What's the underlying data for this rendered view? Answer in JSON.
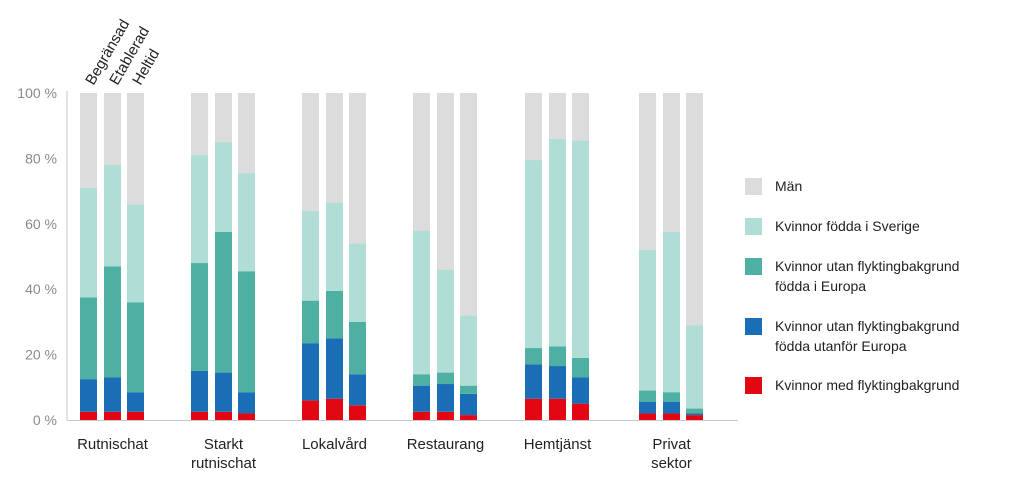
{
  "chart_data": {
    "type": "bar",
    "stacked": true,
    "ylim": [
      0,
      100
    ],
    "y_ticks": [
      "0 %",
      "20 %",
      "40 %",
      "60 %",
      "80 %",
      "100 %"
    ],
    "subgroups": [
      "Begränsad",
      "Etablerad",
      "Heltid"
    ],
    "categories": [
      {
        "lines": [
          "Rutnischat"
        ]
      },
      {
        "lines": [
          "Starkt",
          "rutnischat"
        ]
      },
      {
        "lines": [
          "Lokalvård"
        ]
      },
      {
        "lines": [
          "Restaurang"
        ]
      },
      {
        "lines": [
          "Hemtjänst"
        ]
      },
      {
        "lines": [
          "Privat",
          "sektor"
        ]
      }
    ],
    "series": [
      {
        "name": "Kvinnor med flyktingbakgrund",
        "color": "#e30613",
        "values": [
          [
            2.5,
            2.5,
            2.5
          ],
          [
            2.5,
            2.5,
            2
          ],
          [
            6,
            6.5,
            4.5
          ],
          [
            2.5,
            2.5,
            1.5
          ],
          [
            6.5,
            6.5,
            5
          ],
          [
            2,
            2,
            1.5
          ]
        ]
      },
      {
        "name": "Kvinnor utan flyktingbakgrund födda utanför Europa",
        "color": "#1a6eb5",
        "values": [
          [
            10,
            10.5,
            6
          ],
          [
            12.5,
            12,
            6.5
          ],
          [
            17.5,
            18.5,
            9.5
          ],
          [
            8,
            8.5,
            6.5
          ],
          [
            10.5,
            10,
            8
          ],
          [
            3.5,
            3.5,
            0.5
          ]
        ]
      },
      {
        "name": "Kvinnor utan flyktingbakgrund födda i Europa",
        "color": "#4db0a2",
        "values": [
          [
            25,
            34,
            27.5
          ],
          [
            33,
            43,
            37
          ],
          [
            13,
            14.5,
            16
          ],
          [
            3.5,
            3.5,
            2.5
          ],
          [
            5,
            6,
            6
          ],
          [
            3.5,
            3,
            1.5
          ]
        ]
      },
      {
        "name": "Kvinnor födda i Sverige",
        "color": "#b0ddd6",
        "values": [
          [
            33.5,
            31,
            30
          ],
          [
            33,
            27.5,
            30
          ],
          [
            27.5,
            27,
            24
          ],
          [
            44,
            31.5,
            21.5
          ],
          [
            57.5,
            63.5,
            66.5
          ],
          [
            43,
            49,
            25.5
          ]
        ]
      },
      {
        "name": "Män",
        "color": "#dcdcdc",
        "values": [
          [
            29,
            22,
            34
          ],
          [
            19,
            15,
            24.5
          ],
          [
            36,
            33.5,
            46
          ],
          [
            42,
            54,
            68
          ],
          [
            20.5,
            14,
            14.5
          ],
          [
            48,
            42.5,
            71
          ]
        ]
      }
    ],
    "legend_order": [
      4,
      3,
      2,
      1,
      0
    ],
    "legend": [
      {
        "lines": [
          "Män"
        ]
      },
      {
        "lines": [
          "Kvinnor födda i Sverige"
        ]
      },
      {
        "lines": [
          "Kvinnor utan flyktingbakgrund",
          "födda i Europa"
        ]
      },
      {
        "lines": [
          "Kvinnor utan flyktingbakgrund",
          "födda utanför Europa"
        ]
      },
      {
        "lines": [
          "Kvinnor med flyktingbakgrund"
        ]
      }
    ],
    "legend_placement": "right"
  }
}
